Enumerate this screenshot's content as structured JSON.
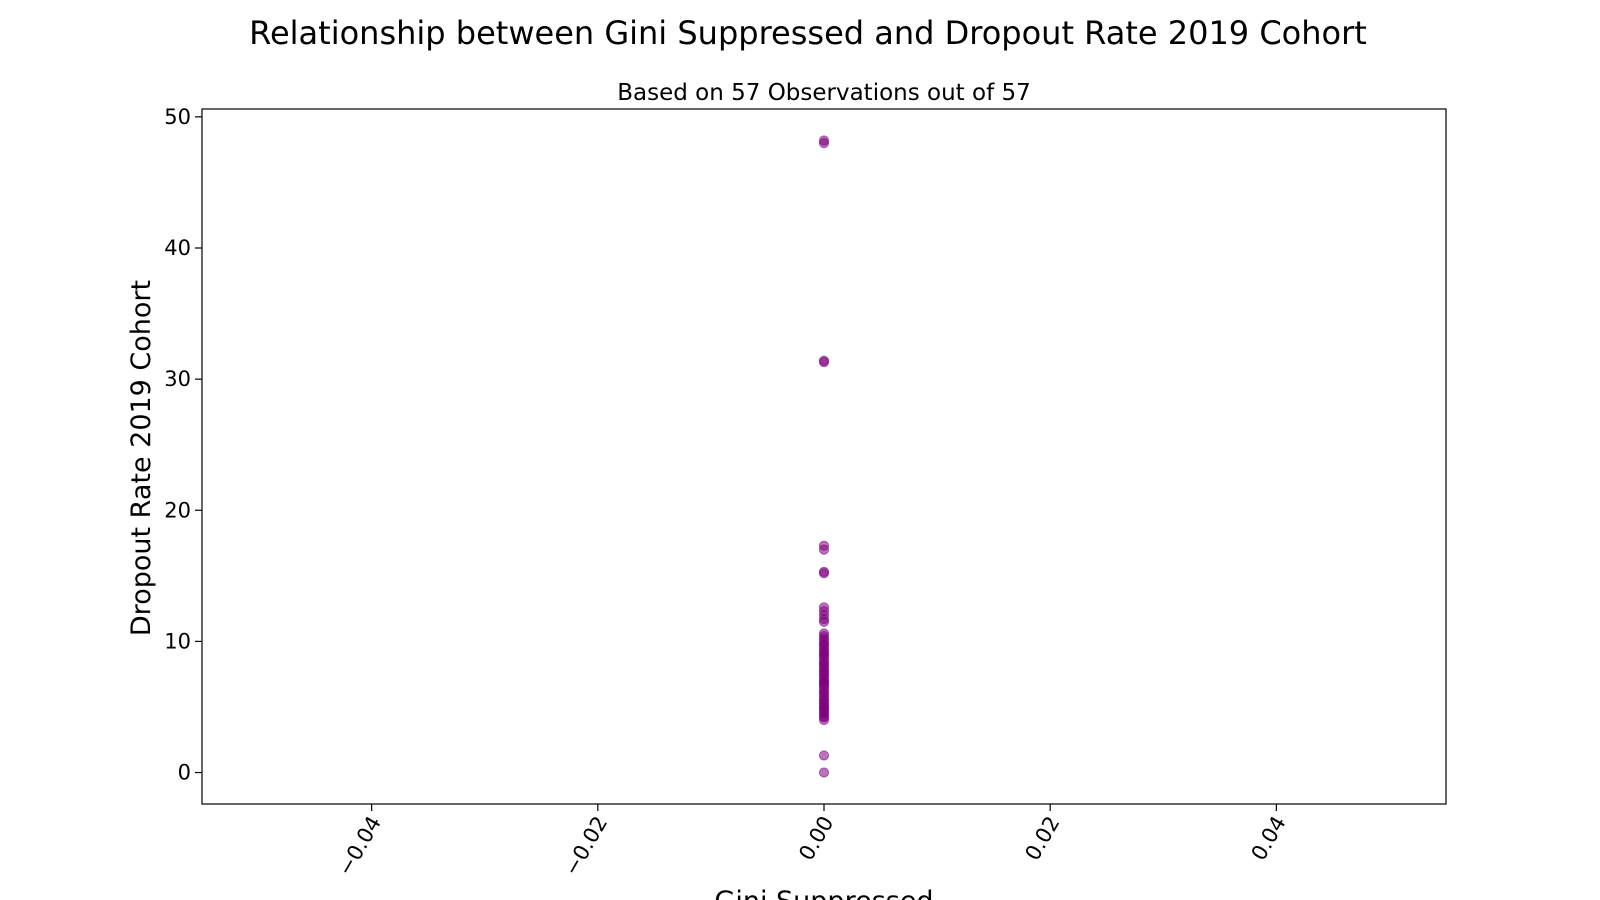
{
  "chart_data": {
    "type": "scatter",
    "title": "Relationship between Gini Suppressed and Dropout Rate 2019 Cohort",
    "subtitle": "Based on 57 Observations out of 57",
    "xlabel": "Gini Suppressed",
    "ylabel": "Dropout Rate 2019 Cohort",
    "xlim": [
      -0.055,
      0.055
    ],
    "ylim": [
      -2.4,
      50.6
    ],
    "x_ticks": [
      -0.04,
      -0.02,
      0.0,
      0.02,
      0.04
    ],
    "x_tick_labels": [
      "−0.04",
      "−0.02",
      "0.00",
      "0.02",
      "0.04"
    ],
    "y_ticks": [
      0,
      10,
      20,
      30,
      40,
      50
    ],
    "y_tick_labels": [
      "0",
      "10",
      "20",
      "30",
      "40",
      "50"
    ],
    "x_tick_rotation_deg": 60,
    "grid": false,
    "marker_color": "#800080",
    "marker_alpha": 0.55,
    "series": [
      {
        "x": [
          0,
          0,
          0,
          0,
          0,
          0,
          0,
          0,
          0,
          0,
          0,
          0,
          0,
          0,
          0,
          0,
          0,
          0,
          0,
          0,
          0,
          0,
          0,
          0,
          0,
          0,
          0,
          0,
          0,
          0,
          0,
          0,
          0,
          0,
          0,
          0,
          0,
          0,
          0,
          0,
          0,
          0,
          0,
          0,
          0,
          0,
          0,
          0,
          0,
          0,
          0,
          0,
          0,
          0,
          0,
          0,
          0
        ],
        "y": [
          48.2,
          48.0,
          31.4,
          31.3,
          17.3,
          17.0,
          15.3,
          15.2,
          12.6,
          12.3,
          12.0,
          11.7,
          11.5,
          10.6,
          10.4,
          10.2,
          10.0,
          9.8,
          9.7,
          9.5,
          9.3,
          9.2,
          9.0,
          8.9,
          8.7,
          8.5,
          8.3,
          8.2,
          8.0,
          7.8,
          7.7,
          7.5,
          7.4,
          7.2,
          7.0,
          6.9,
          6.8,
          6.7,
          6.5,
          6.3,
          6.1,
          6.0,
          5.8,
          5.6,
          5.5,
          5.3,
          5.2,
          5.0,
          4.9,
          4.8,
          4.6,
          4.5,
          4.3,
          4.2,
          4.0,
          1.3,
          0.0
        ]
      }
    ]
  }
}
